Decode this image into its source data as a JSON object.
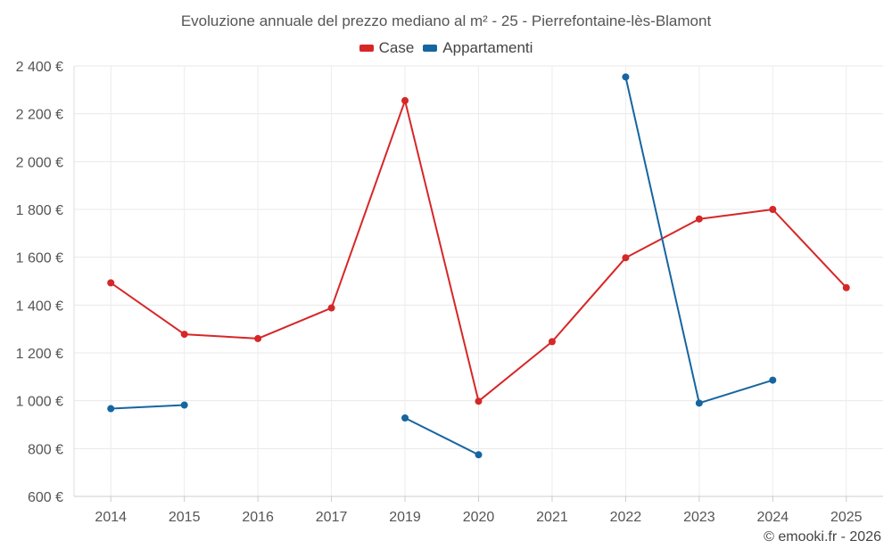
{
  "chart_data": {
    "type": "line",
    "title": "Evoluzione annuale del prezzo mediano al m² - 25 - Pierrefontaine-lès-Blamont",
    "categories": [
      "2014",
      "2015",
      "2016",
      "2017",
      "2019",
      "2020",
      "2021",
      "2022",
      "2023",
      "2024",
      "2025"
    ],
    "series": [
      {
        "name": "Case",
        "color": "#d62728",
        "values": [
          1493,
          1278,
          1260,
          1388,
          2255,
          998,
          1247,
          1598,
          1760,
          1800,
          1473
        ]
      },
      {
        "name": "Appartamenti",
        "color": "#1565a0",
        "values": [
          967,
          982,
          null,
          null,
          928,
          774,
          null,
          2354,
          990,
          1086,
          null
        ]
      }
    ],
    "y_ticks": [
      "600 €",
      "800 €",
      "1 000 €",
      "1 200 €",
      "1 400 €",
      "1 600 €",
      "1 800 €",
      "2 000 €",
      "2 200 €",
      "2 400 €"
    ],
    "ylim": [
      600,
      2400
    ],
    "xlabel": "",
    "ylabel": "",
    "grid": true,
    "legend_position": "top-center"
  },
  "credit": "© emooki.fr - 2026"
}
